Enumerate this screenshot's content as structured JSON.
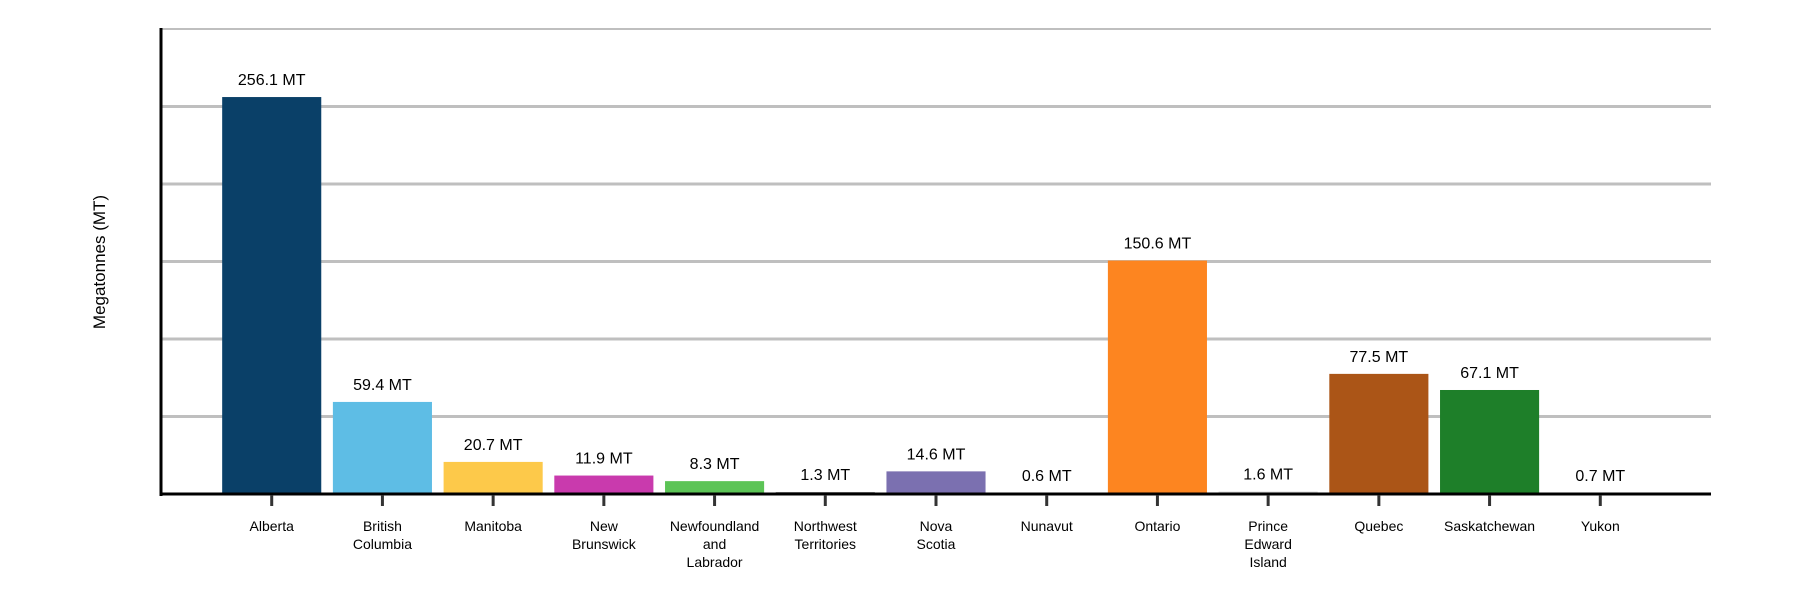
{
  "chart_data": {
    "type": "bar",
    "title": "",
    "xlabel": "",
    "ylabel": "Megatonnes (MT)",
    "ylim": [
      0,
      300
    ],
    "grid": true,
    "gridlines": [
      50,
      100,
      150,
      200,
      250,
      300
    ],
    "categories": [
      [
        "Alberta"
      ],
      [
        "British",
        "Columbia"
      ],
      [
        "Manitoba"
      ],
      [
        "New",
        "Brunswick"
      ],
      [
        "Newfoundland",
        "and",
        "Labrador"
      ],
      [
        "Northwest",
        "Territories"
      ],
      [
        "Nova",
        "Scotia"
      ],
      [
        "Nunavut"
      ],
      [
        "Ontario"
      ],
      [
        "Prince",
        "Edward",
        "Island"
      ],
      [
        "Quebec"
      ],
      [
        "Saskatchewan"
      ],
      [
        "Yukon"
      ]
    ],
    "values": [
      256.1,
      59.4,
      20.7,
      11.9,
      8.3,
      1.3,
      14.6,
      0.6,
      150.6,
      1.6,
      77.5,
      67.1,
      0.7
    ],
    "value_labels": [
      "256.1 MT",
      "59.4 MT",
      "20.7 MT",
      "11.9 MT",
      "8.3 MT",
      "1.3 MT",
      "14.6 MT",
      "0.6 MT",
      "150.6 MT",
      "1.6 MT",
      "77.5 MT",
      "67.1 MT",
      "0.7 MT"
    ],
    "colors": [
      "#0a4068",
      "#5ebde5",
      "#fdc94a",
      "#c93aad",
      "#5cc456",
      "#999999",
      "#7b70b0",
      "#555555",
      "#fd8520",
      "#dddddd",
      "#ab5517",
      "#1e7f29",
      "#888888"
    ]
  }
}
